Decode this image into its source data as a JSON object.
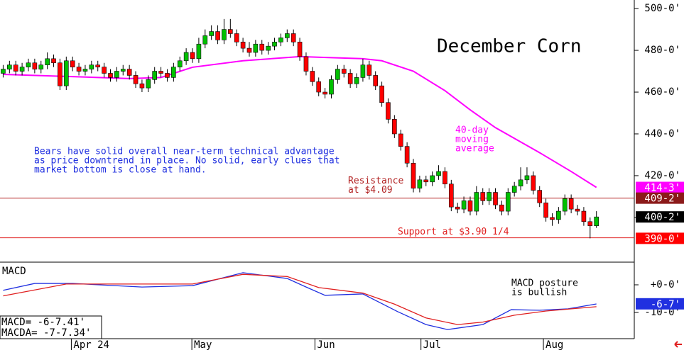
{
  "chart_data": [
    {
      "type": "candlestick",
      "title": "December Corn",
      "xlim": [
        -0.5,
        100
      ],
      "ylim": [
        378.6,
        504.1
      ],
      "yticks": [
        {
          "value": 500,
          "label": "500-0'"
        },
        {
          "value": 480,
          "label": "480-0'"
        },
        {
          "value": 460,
          "label": "460-0'"
        },
        {
          "value": 440,
          "label": "440-0'"
        },
        {
          "value": 420,
          "label": "420-0'"
        },
        {
          "value": 400,
          "label": "400-0'"
        }
      ],
      "up_color": "#00c000",
      "down_color": "#ff0000",
      "open": [
        469,
        471,
        473,
        470,
        472,
        474,
        471,
        473,
        476,
        474,
        463,
        475,
        472,
        470,
        471,
        473,
        472,
        469,
        467,
        470,
        471,
        468,
        464,
        462,
        466,
        470,
        469,
        467,
        472,
        475,
        479,
        476,
        483,
        487,
        489,
        485,
        490,
        488,
        484,
        481,
        479,
        483,
        480,
        482,
        484,
        486,
        488,
        484,
        477,
        470,
        465,
        460,
        459,
        466,
        471,
        469,
        464,
        467,
        473,
        468,
        463,
        455,
        447,
        440,
        434,
        426,
        414,
        418,
        417,
        420,
        422,
        416,
        405,
        404,
        408,
        403,
        412,
        408,
        412,
        406,
        403,
        412,
        415,
        418,
        420,
        413,
        407,
        400,
        399,
        403,
        409,
        404,
        403,
        398,
        396
      ],
      "high": [
        473,
        475,
        475,
        474,
        476,
        476,
        475,
        479,
        478,
        476,
        477,
        477,
        474,
        473,
        475,
        475,
        474,
        471,
        472,
        473,
        473,
        470,
        466,
        468,
        472,
        472,
        471,
        474,
        477,
        481,
        481,
        486,
        490,
        492,
        492,
        495,
        495,
        490,
        486,
        484,
        485,
        485,
        484,
        486,
        488,
        490,
        490,
        486,
        479,
        472,
        467,
        462,
        468,
        473,
        473,
        471,
        469,
        476,
        475,
        470,
        465,
        457,
        449,
        442,
        436,
        428,
        420,
        420,
        422,
        425,
        424,
        418,
        407,
        410,
        410,
        415,
        414,
        414,
        414,
        408,
        414,
        417,
        424,
        424,
        422,
        415,
        409,
        402,
        405,
        411,
        411,
        406,
        405,
        400,
        403
      ],
      "low": [
        467,
        469,
        468,
        468,
        470,
        469,
        469,
        471,
        472,
        461,
        461,
        470,
        468,
        468,
        469,
        470,
        467,
        465,
        465,
        468,
        466,
        462,
        460,
        460,
        464,
        467,
        465,
        465,
        470,
        473,
        474,
        474,
        481,
        485,
        483,
        483,
        486,
        482,
        479,
        477,
        477,
        478,
        478,
        480,
        482,
        484,
        482,
        475,
        468,
        463,
        458,
        457,
        457,
        464,
        467,
        462,
        462,
        465,
        466,
        461,
        453,
        445,
        438,
        432,
        424,
        412,
        412,
        415,
        415,
        418,
        414,
        403,
        402,
        402,
        401,
        401,
        406,
        406,
        404,
        401,
        401,
        410,
        413,
        416,
        411,
        405,
        398,
        396,
        397,
        401,
        402,
        401,
        396,
        390,
        395
      ],
      "close": [
        471,
        473,
        470,
        472,
        474,
        471,
        473,
        476,
        474,
        463,
        475,
        472,
        470,
        471,
        473,
        472,
        469,
        467,
        470,
        471,
        468,
        464,
        462,
        466,
        470,
        469,
        467,
        472,
        475,
        479,
        476,
        483,
        487,
        489,
        485,
        490,
        488,
        484,
        481,
        479,
        483,
        480,
        482,
        484,
        486,
        488,
        484,
        477,
        470,
        465,
        460,
        459,
        466,
        471,
        469,
        464,
        467,
        473,
        468,
        463,
        455,
        447,
        440,
        434,
        426,
        414,
        418,
        417,
        420,
        422,
        416,
        405,
        404,
        408,
        403,
        412,
        408,
        412,
        406,
        403,
        412,
        415,
        418,
        420,
        413,
        407,
        400,
        399,
        403,
        409,
        404,
        403,
        398,
        396,
        400.25
      ],
      "moving_average": {
        "color": "#ff00ff",
        "x": [
          0,
          10,
          20,
          25,
          30,
          38,
          47,
          52,
          57,
          60,
          65,
          70,
          74,
          78,
          85,
          90,
          94
        ],
        "values": [
          468.5,
          467.5,
          466.5,
          467,
          471.9,
          475,
          477,
          476.5,
          476,
          475,
          470,
          460.7,
          451.5,
          443,
          431,
          422,
          414.375
        ]
      },
      "levels": [
        {
          "value": 409.25,
          "label_lines": [
            "Resistance",
            "at $4.09"
          ],
          "color": "#b22222"
        },
        {
          "value": 390.25,
          "label": "Support at $3.90 1/4",
          "color": "#e02020"
        }
      ],
      "price_tags": [
        {
          "value": 414.375,
          "label": "414-3'",
          "color": "#ff00ff"
        },
        {
          "value": 409.25,
          "label": "409-2'",
          "color": "#8b1a1a"
        },
        {
          "value": 400.25,
          "label": "400-2'",
          "color": "#000000"
        },
        {
          "value": 390,
          "label": "390-0'",
          "color": "#ff0000"
        }
      ],
      "annotations": {
        "commentary": [
          "Bears have solid overall near-term technical advantage",
          "as price downtrend in place. No solid, early clues that",
          "market bottom is close at hand."
        ],
        "ma_label": [
          "40-day",
          "moving",
          "average"
        ]
      }
    },
    {
      "type": "line",
      "title": "MACD",
      "xlim": [
        -0.5,
        100
      ],
      "ylim": [
        -19.5,
        7.7
      ],
      "yticks": [
        {
          "value": 0,
          "label": "+0-0'"
        },
        {
          "value": -10,
          "label": "-10-0'"
        }
      ],
      "xticks": [
        {
          "value": 10.8,
          "label": "Apr 24"
        },
        {
          "value": 29.9,
          "label": "May"
        },
        {
          "value": 49.4,
          "label": "Jun"
        },
        {
          "value": 66.2,
          "label": "Jul"
        },
        {
          "value": 85.6,
          "label": "Aug"
        }
      ],
      "series": [
        {
          "color": "#2030e0",
          "x": [
            0,
            5,
            11,
            22,
            30,
            38,
            45,
            48,
            51,
            57,
            62.5,
            67,
            70.4,
            76,
            80.5,
            85,
            89.5,
            94
          ],
          "values": [
            -2,
            0.5,
            0.5,
            -0.8,
            -0.3,
            4.4,
            2.3,
            -0.8,
            -3.8,
            -3.3,
            -9.7,
            -14.4,
            -16.2,
            -14.4,
            -9,
            -9.2,
            -8.7,
            -6.93
          ]
        },
        {
          "color": "#e02020",
          "x": [
            0,
            10,
            30,
            38,
            45,
            50,
            57,
            62,
            67,
            72,
            76,
            81,
            86,
            94
          ],
          "values": [
            -4,
            0.3,
            0.3,
            3.8,
            3,
            -1,
            -3,
            -7,
            -12,
            -14.4,
            -13.5,
            -11,
            -9.5,
            -7.92
          ]
        }
      ],
      "tag": {
        "value": -6.875,
        "label": "-6-7'",
        "color": "#2030e0"
      },
      "readout": [
        "MACD=  -6-7.41'",
        "MACDA=  -7-7.34'"
      ],
      "annotation": [
        "MACD posture",
        "is bullish"
      ]
    }
  ]
}
